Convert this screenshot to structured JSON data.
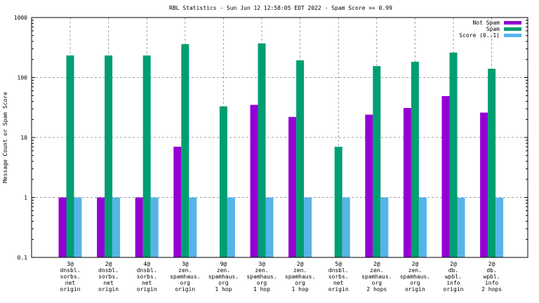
{
  "chart_data": {
    "type": "bar",
    "title": "RBL Statistics - Sun Jun 12 12:58:05 EDT 2022 - Spam Score >= 0.99",
    "xlabel": "",
    "ylabel": "Message Count or Spam Score",
    "yscale": "log",
    "ylim": [
      0.1,
      1000
    ],
    "yticks": [
      "0.1",
      "1",
      "10",
      "100",
      "1000"
    ],
    "yticks_values": [
      0.1,
      1,
      10,
      100,
      1000
    ],
    "grid": true,
    "legend_position": "top-right",
    "categories": [
      [
        "3@",
        "dnsbl.",
        "sorbs.",
        "net",
        "origin"
      ],
      [
        "2@",
        "dnsbl.",
        "sorbs.",
        "net",
        "origin"
      ],
      [
        "4@",
        "dnsbl.",
        "sorbs.",
        "net",
        "origin"
      ],
      [
        "3@",
        "zen.",
        "spamhaus.",
        "org",
        "origin"
      ],
      [
        "9@",
        "zen.",
        "spamhaus.",
        "org",
        "1 hop"
      ],
      [
        "3@",
        "zen.",
        "spamhaus.",
        "org",
        "1 hop"
      ],
      [
        "2@",
        "zen.",
        "spamhaus.",
        "org",
        "1 hop"
      ],
      [
        "5@",
        "dnsbl.",
        "sorbs.",
        "net",
        "origin"
      ],
      [
        "2@",
        "zen.",
        "spamhaus.",
        "org",
        "2 hops"
      ],
      [
        "2@",
        "zen.",
        "spamhaus.",
        "org",
        "origin"
      ],
      [
        "2@",
        "db.",
        "wpbl.",
        "info",
        "origin"
      ],
      [
        "2@",
        "db.",
        "wpbl.",
        "info",
        "2 hops"
      ]
    ],
    "series": [
      {
        "name": "Not Spam",
        "color": "#9400d3",
        "values": [
          1,
          1,
          1,
          7,
          0,
          35,
          22,
          0,
          24,
          31,
          49,
          26
        ]
      },
      {
        "name": "Spam",
        "color": "#009e73",
        "values": [
          233,
          233,
          233,
          360,
          33,
          370,
          193,
          7,
          155,
          183,
          260,
          140
        ]
      },
      {
        "name": "Score (0..1)",
        "color": "#56b4e9",
        "values": [
          1,
          1,
          1,
          1,
          1,
          1,
          1,
          1,
          1,
          1,
          0.99,
          0.99
        ]
      }
    ]
  }
}
